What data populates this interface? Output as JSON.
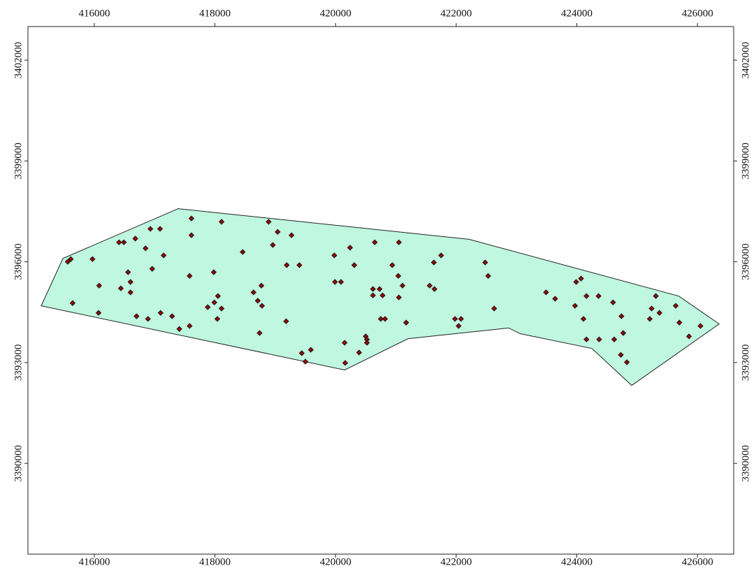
{
  "chart_data": {
    "type": "scatter",
    "xlim": [
      414900,
      426600
    ],
    "ylim": [
      3387300,
      3403000
    ],
    "xticks": [
      416000,
      418000,
      420000,
      422000,
      424000,
      426000
    ],
    "yticks": [
      3390000,
      3393000,
      3396000,
      3399000,
      3402000
    ],
    "grid": false,
    "polygon": {
      "color": "#bff7e1",
      "x": [
        415120,
        415480,
        417390,
        422210,
        425690,
        426360,
        424910,
        424250,
        423060,
        422870,
        421200,
        420150,
        415120
      ],
      "y": [
        3394690,
        3396100,
        3397580,
        3396670,
        3394980,
        3394150,
        3392320,
        3393420,
        3393860,
        3394030,
        3393710,
        3392780,
        3394690
      ]
    },
    "series": [
      {
        "color": "#8b0a0a",
        "x": [
          415610,
          415560,
          415970,
          415640,
          416080,
          416070,
          416410,
          416490,
          416680,
          416850,
          416930,
          417090,
          417150,
          416960,
          416560,
          416600,
          416440,
          416600,
          416700,
          416890,
          417100,
          417290,
          417410,
          417580,
          417580,
          417610,
          417610,
          418110,
          418460,
          417980,
          417990,
          418050,
          418110,
          417880,
          418040,
          418640,
          418710,
          418770,
          418780,
          418740,
          418890,
          418960,
          419040,
          419270,
          419190,
          419400,
          419180,
          419440,
          419590,
          419500,
          419980,
          419990,
          420090,
          420240,
          420310,
          420150,
          420160,
          420390,
          420500,
          420520,
          420520,
          420620,
          420730,
          420650,
          420620,
          420780,
          420750,
          420820,
          420940,
          421040,
          421050,
          421110,
          421050,
          421170,
          421560,
          421640,
          421630,
          421750,
          421980,
          422080,
          422040,
          422480,
          422530,
          422630,
          423490,
          423640,
          423990,
          424070,
          423970,
          424160,
          424110,
          424160,
          424360,
          424370,
          424600,
          424620,
          424740,
          424770,
          424730,
          424830,
          425310,
          425240,
          425210,
          425370,
          425640,
          425700,
          425860,
          426050
        ],
        "values": [
          3396080,
          3396000,
          3396080,
          3394770,
          3395290,
          3394480,
          3396580,
          3396580,
          3396690,
          3396400,
          3396980,
          3396980,
          3396190,
          3395790,
          3395690,
          3395400,
          3395210,
          3395090,
          3394380,
          3394300,
          3394480,
          3394380,
          3394000,
          3394090,
          3395580,
          3397290,
          3396790,
          3397190,
          3396290,
          3395690,
          3394790,
          3394980,
          3394610,
          3394650,
          3394300,
          3395090,
          3394840,
          3395290,
          3394690,
          3393880,
          3397190,
          3396500,
          3396890,
          3396790,
          3395900,
          3395900,
          3394230,
          3393280,
          3393380,
          3393030,
          3396190,
          3395400,
          3395400,
          3396420,
          3395900,
          3393590,
          3392990,
          3393300,
          3393780,
          3393690,
          3393590,
          3395190,
          3395190,
          3396580,
          3395000,
          3395000,
          3394300,
          3394300,
          3395900,
          3395580,
          3396580,
          3395290,
          3394940,
          3394190,
          3395290,
          3395190,
          3395980,
          3396190,
          3394300,
          3394300,
          3394090,
          3395980,
          3395580,
          3394610,
          3395090,
          3394900,
          3395400,
          3395500,
          3394690,
          3394980,
          3394300,
          3393690,
          3394980,
          3393690,
          3394790,
          3393690,
          3394380,
          3393880,
          3393230,
          3393010,
          3394980,
          3394610,
          3394300,
          3394480,
          3394690,
          3394190,
          3393780,
          3394090
        ]
      }
    ]
  }
}
